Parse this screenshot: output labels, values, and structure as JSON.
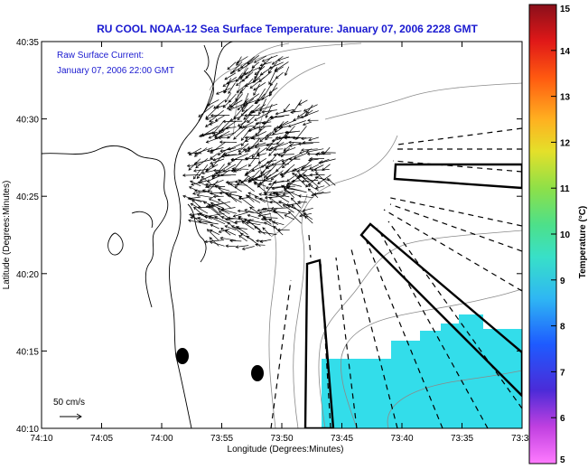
{
  "title": "RU COOL  NOAA-12  Sea Surface Temperature:  January 07, 2006 2228 GMT",
  "current_annotation": {
    "line1": "Raw Surface Current:",
    "line2": "January 07, 2006 22:00 GMT"
  },
  "scale_label": "50 cm/s",
  "chart_data": {
    "type": "heatmap",
    "title": "RU COOL  NOAA-12  Sea Surface Temperature:  January 07, 2006 2228 GMT",
    "xlabel": "Longitude (Degrees:Minutes)",
    "ylabel": "Latitude (Degrees:Minutes)",
    "x_ticks": [
      "74:10",
      "74:05",
      "74:00",
      "73:55",
      "73:50",
      "73:45",
      "73:40",
      "73:35",
      "73:3"
    ],
    "y_ticks": [
      "40:10",
      "40:15",
      "40:20",
      "40:25",
      "40:30",
      "40:35"
    ],
    "colorbar": {
      "label": "Temperature (°C)",
      "ticks": [
        "5",
        "6",
        "7",
        "8",
        "9",
        "10",
        "11",
        "12",
        "13",
        "14",
        "15"
      ],
      "range": [
        5,
        15
      ]
    },
    "sst_patch_value_c": 8.6
  },
  "colors": {
    "title": "#1a1ad0",
    "sst_patch": "#33ddea",
    "land_line": "#000000",
    "bathymetry": "#888888"
  }
}
